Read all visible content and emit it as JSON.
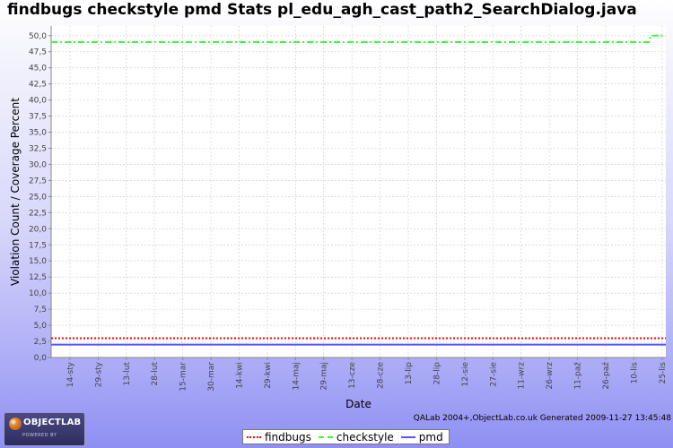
{
  "page": {
    "title": "findbugs checkstyle pmd  Stats pl_edu_agh_cast_path2_SearchDialog.java",
    "generated_text": "QALab 2004+,ObjectLab.co.uk Generated 2009-11-27 13:45:48",
    "logo_text": "OBJECTLAB",
    "logo_sub": "POWERED BY"
  },
  "chart_data": {
    "type": "line",
    "title": "findbugs checkstyle pmd  Stats pl_edu_agh_cast_path2_SearchDialog.java",
    "xlabel": "Date",
    "ylabel": "Violation Count / Coverage Percent",
    "ylim": [
      0,
      51.5
    ],
    "yticks": [
      0,
      2.5,
      5,
      7.5,
      10,
      12.5,
      15,
      17.5,
      20,
      22.5,
      25,
      27.5,
      30,
      32.5,
      35,
      37.5,
      40,
      42.5,
      45,
      47.5,
      50
    ],
    "ytick_labels": [
      "0,0",
      "2,5",
      "5,0",
      "7,5",
      "10,0",
      "12,5",
      "15,0",
      "17,5",
      "20,0",
      "22,5",
      "25,0",
      "27,5",
      "30,0",
      "32,5",
      "35,0",
      "37,5",
      "40,0",
      "42,5",
      "45,0",
      "47,5",
      "50,0"
    ],
    "x_range": [
      "2009-01-04",
      "2009-11-27"
    ],
    "x_ticks": [
      "2009-01-14",
      "2009-01-29",
      "2009-02-13",
      "2009-02-28",
      "2009-03-15",
      "2009-03-30",
      "2009-04-14",
      "2009-04-29",
      "2009-05-14",
      "2009-05-29",
      "2009-06-13",
      "2009-06-28",
      "2009-07-13",
      "2009-07-28",
      "2009-08-12",
      "2009-08-27",
      "2009-09-11",
      "2009-09-26",
      "2009-10-11",
      "2009-10-26",
      "2009-11-10",
      "2009-11-25"
    ],
    "x_tick_labels": [
      "14-sty",
      "29-sty",
      "13-lut",
      "28-lut",
      "15-mar",
      "30-mar",
      "14-kwi",
      "29-kwi",
      "14-maj",
      "29-maj",
      "13-cze",
      "28-cze",
      "13-lip",
      "28-lip",
      "12-sie",
      "27-sie",
      "11-wrz",
      "26-wrz",
      "11-paź",
      "26-paź",
      "10-lis",
      "25-lis"
    ],
    "grid": true,
    "legend_position": "bottom-center",
    "series": [
      {
        "name": "findbugs",
        "color": "#ff0000",
        "style": "dotted",
        "x": [
          "2009-01-04",
          "2009-11-27"
        ],
        "values": [
          3,
          3
        ]
      },
      {
        "name": "checkstyle",
        "color": "#33ff33",
        "style": "dash-dot",
        "x": [
          "2009-01-04",
          "2009-11-18",
          "2009-11-19",
          "2009-11-27"
        ],
        "values": [
          49,
          49,
          50,
          50
        ]
      },
      {
        "name": "pmd",
        "color": "#5555ff",
        "style": "solid",
        "x": [
          "2009-01-04",
          "2009-11-27"
        ],
        "values": [
          2,
          2
        ]
      }
    ]
  }
}
